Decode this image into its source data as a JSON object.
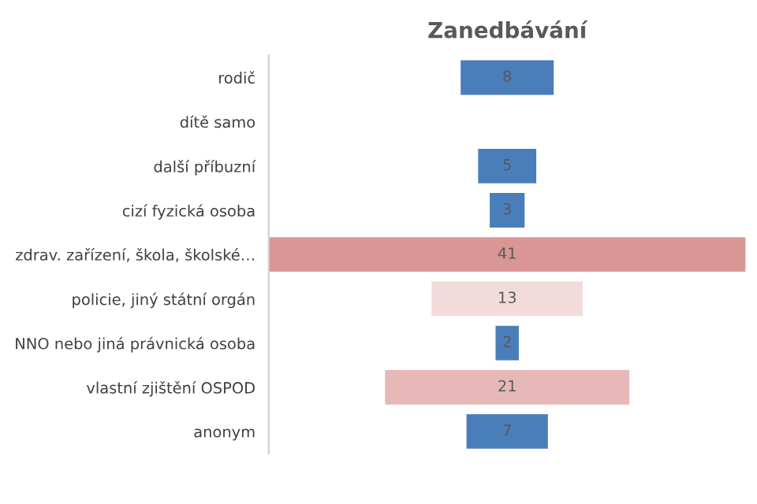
{
  "chart_data": {
    "type": "other",
    "title": "Zanedbávání",
    "categories": [
      "rodič",
      "dítě samo",
      "další příbuzní",
      "cizí fyzická osoba",
      "zdrav. zařízení, škola, školské…",
      "policie, jiný státní orgán",
      "NNO nebo jiná právnická osoba",
      "vlastní zjištění OSPOD",
      "anonym"
    ],
    "values": [
      8,
      null,
      5,
      3,
      41,
      13,
      2,
      21,
      7
    ],
    "value_labels": [
      "8",
      null,
      "5",
      "3",
      "41",
      "13",
      "2",
      "21",
      "7"
    ],
    "colors": [
      "#4a7ebb",
      "#4a7ebb",
      "#4a7ebb",
      "#4a7ebb",
      "#d99694",
      "#f2dcdb",
      "#4a7ebb",
      "#e6b9b8",
      "#4a7ebb"
    ]
  }
}
